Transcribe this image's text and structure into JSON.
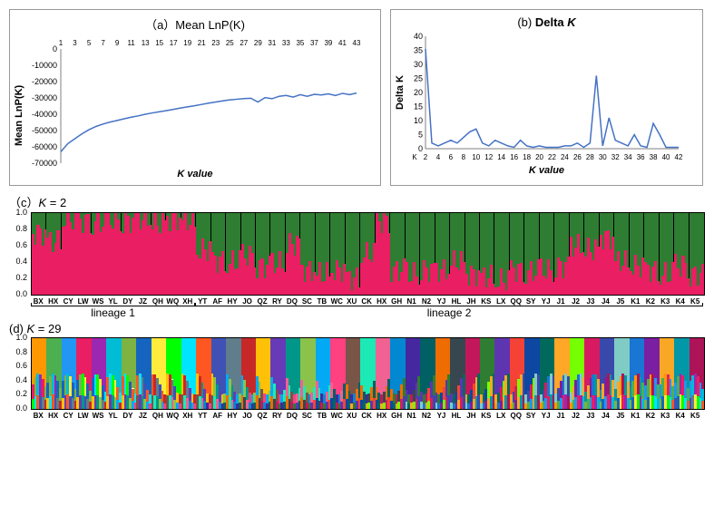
{
  "chartA": {
    "title": "（a）Mean LnP(K)",
    "ylabel": "Mean LnP(K)",
    "xlabel": "K value",
    "title_fontsize": 13,
    "label_fontsize": 11,
    "line_color": "#4472c4",
    "border_color": "#999999",
    "background_color": "#ffffff",
    "ylim": [
      -70000,
      0
    ],
    "ytick_step": 10000,
    "yticks": [
      0,
      -10000,
      -20000,
      -30000,
      -40000,
      -50000,
      -60000,
      -70000
    ],
    "xticks": [
      1,
      3,
      5,
      7,
      9,
      11,
      13,
      15,
      17,
      19,
      21,
      23,
      25,
      27,
      29,
      31,
      33,
      35,
      37,
      39,
      41,
      43
    ],
    "x": [
      1,
      2,
      3,
      4,
      5,
      6,
      7,
      8,
      9,
      10,
      11,
      12,
      13,
      14,
      15,
      16,
      17,
      18,
      19,
      20,
      21,
      22,
      23,
      24,
      25,
      26,
      27,
      28,
      29,
      30,
      31,
      32,
      33,
      34,
      35,
      36,
      37,
      38,
      39,
      40,
      41,
      42,
      43
    ],
    "y": [
      -63000,
      -58000,
      -55000,
      -52000,
      -49500,
      -47500,
      -46000,
      -44800,
      -43800,
      -42800,
      -41800,
      -41000,
      -40000,
      -39200,
      -38500,
      -37800,
      -37000,
      -36200,
      -35500,
      -34800,
      -34000,
      -33200,
      -32500,
      -31800,
      -31200,
      -30800,
      -30400,
      -30200,
      -32500,
      -29800,
      -30500,
      -29000,
      -28500,
      -29500,
      -28000,
      -29000,
      -27800,
      -28200,
      -27500,
      -28500,
      -27200,
      -28000,
      -27000
    ],
    "line_width": 1.5
  },
  "chartB": {
    "title": "(b) Delta K",
    "ylabel": "Delta K",
    "xlabel": "K value",
    "title_fontsize": 13,
    "label_fontsize": 11,
    "line_color": "#4472c4",
    "border_color": "#999999",
    "background_color": "#ffffff",
    "ylim": [
      0,
      40
    ],
    "ytick_step": 5,
    "yticks": [
      0,
      5,
      10,
      15,
      20,
      25,
      30,
      35,
      40
    ],
    "xticks": [
      "K",
      2,
      4,
      6,
      8,
      10,
      12,
      14,
      16,
      18,
      20,
      22,
      24,
      26,
      28,
      30,
      32,
      34,
      36,
      38,
      40,
      42
    ],
    "x": [
      2,
      3,
      4,
      5,
      6,
      7,
      8,
      9,
      10,
      11,
      12,
      13,
      14,
      15,
      16,
      17,
      18,
      19,
      20,
      21,
      22,
      23,
      24,
      25,
      26,
      27,
      28,
      29,
      30,
      31,
      32,
      33,
      34,
      35,
      36,
      37,
      38,
      39,
      40,
      41,
      42
    ],
    "y": [
      35.5,
      2,
      1,
      2,
      3,
      2,
      4,
      6,
      7,
      2,
      1,
      3,
      2,
      1,
      0.5,
      3,
      1,
      0.5,
      1,
      0.5,
      0.5,
      0.5,
      1,
      1,
      2,
      0.5,
      2,
      26,
      1,
      11,
      3,
      2,
      1,
      5,
      1,
      0.5,
      9,
      5,
      0.5,
      0.5,
      0.5
    ],
    "line_width": 1.5
  },
  "panelC": {
    "label": "（c）K = 2",
    "label_fontsize": 13,
    "yticks": [
      "0.0",
      "0.2",
      "0.4",
      "0.6",
      "0.8",
      "1.0"
    ],
    "colors": {
      "cluster1": "#e91e63",
      "cluster2": "#2e7d32",
      "border": "#000000"
    },
    "populations": [
      "BX",
      "HX",
      "CY",
      "LW",
      "WS",
      "YL",
      "DY",
      "JZ",
      "QH",
      "WQ",
      "XH",
      "YT",
      "AF",
      "HY",
      "JO",
      "QZ",
      "RY",
      "DQ",
      "SC",
      "TB",
      "WC",
      "XU",
      "CK",
      "HX",
      "GH",
      "N1",
      "N2",
      "YJ",
      "HL",
      "JH",
      "KS",
      "LX",
      "QQ",
      "SY",
      "YJ",
      "J1",
      "J2",
      "J3",
      "J4",
      "J5",
      "K1",
      "K2",
      "K3",
      "K4",
      "K5"
    ],
    "frac_red": [
      0.75,
      0.65,
      0.92,
      0.9,
      0.88,
      0.92,
      0.9,
      0.93,
      0.88,
      0.93,
      0.9,
      0.55,
      0.42,
      0.4,
      0.48,
      0.35,
      0.38,
      0.62,
      0.3,
      0.25,
      0.3,
      0.2,
      0.5,
      0.9,
      0.3,
      0.25,
      0.3,
      0.3,
      0.4,
      0.25,
      0.22,
      0.18,
      0.3,
      0.28,
      0.3,
      0.35,
      0.6,
      0.55,
      0.7,
      0.4,
      0.35,
      0.3,
      0.25,
      0.35,
      0.25
    ],
    "lineages": [
      {
        "label": "lineage 1",
        "start": 0,
        "end": 11
      },
      {
        "label": "lineage 2",
        "start": 11,
        "end": 45
      }
    ]
  },
  "panelD": {
    "label": "(d) K = 29",
    "label_fontsize": 13,
    "yticks": [
      "0.0",
      "0.2",
      "0.4",
      "0.6",
      "0.8",
      "1.0"
    ],
    "border_color": "#000000",
    "populations": [
      "BX",
      "HX",
      "CY",
      "LW",
      "WS",
      "YL",
      "DY",
      "JZ",
      "QH",
      "WQ",
      "XH",
      "YT",
      "AF",
      "HY",
      "JO",
      "QZ",
      "RY",
      "DQ",
      "SC",
      "TB",
      "WC",
      "XU",
      "CK",
      "HX",
      "GH",
      "N1",
      "N2",
      "YJ",
      "HL",
      "JH",
      "KS",
      "LX",
      "QQ",
      "SY",
      "YJ",
      "J1",
      "J2",
      "J3",
      "J4",
      "J5",
      "K1",
      "K2",
      "K3",
      "K4",
      "K5"
    ],
    "colors": [
      "#ff9800",
      "#4caf50",
      "#2196f3",
      "#e91e63",
      "#9c27b0",
      "#00bcd4",
      "#7cb342",
      "#1565c0",
      "#ffeb3b",
      "#00ff00",
      "#00e5ff",
      "#ff5722",
      "#3f51b5",
      "#607d8b",
      "#c62828",
      "#ffc107",
      "#673ab7",
      "#009688",
      "#8bc34a",
      "#03a9f4",
      "#ff4081",
      "#795548",
      "#1de9b6",
      "#f06292",
      "#0288d1",
      "#4527a0",
      "#006064",
      "#ef6c00",
      "#37474f",
      "#c2185b",
      "#2e7d32",
      "#5e35b1",
      "#f44336",
      "#0d47a1",
      "#00695c",
      "#ffa726",
      "#76ff03",
      "#d81b60",
      "#3949ab",
      "#80cbc4",
      "#1976d2",
      "#7b1fa2",
      "#f9a825",
      "#0097a7",
      "#ad1457"
    ]
  }
}
